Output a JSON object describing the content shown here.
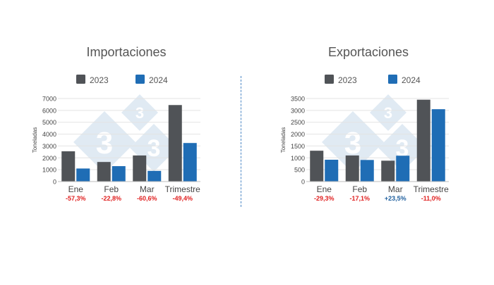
{
  "colors": {
    "s2023": "#505357",
    "s2024": "#1f6db5",
    "negative": "#e02020",
    "positive": "#1f5f9e",
    "grid": "#e3e3e3",
    "text": "#555555",
    "watermark": "#dde8f2"
  },
  "watermark_icon": "333-logo-watermark",
  "chart_data": [
    {
      "type": "bar",
      "title": "Importaciones",
      "ylabel": "Toneladas",
      "xlabel": "",
      "categories": [
        "Ene",
        "Feb",
        "Mar",
        "Trimestre"
      ],
      "changes": [
        "-57,3%",
        "-22,8%",
        "-60,6%",
        "-49,4%"
      ],
      "change_signs": [
        "negative",
        "negative",
        "negative",
        "negative"
      ],
      "ylim": [
        0,
        7000
      ],
      "yticks": [
        0,
        1000,
        2000,
        3000,
        4000,
        5000,
        6000,
        7000
      ],
      "grid": true,
      "legend_position": "top",
      "series": [
        {
          "name": "2023",
          "values": [
            2550,
            1650,
            2200,
            6450
          ]
        },
        {
          "name": "2024",
          "values": [
            1100,
            1300,
            900,
            3250
          ]
        }
      ]
    },
    {
      "type": "bar",
      "title": "Exportaciones",
      "ylabel": "Toneladas",
      "xlabel": "",
      "categories": [
        "Ene",
        "Feb",
        "Mar",
        "Trimestre"
      ],
      "changes": [
        "-29,3%",
        "-17,1%",
        "+23,5%",
        "-11,0%"
      ],
      "change_signs": [
        "negative",
        "negative",
        "positive",
        "negative"
      ],
      "ylim": [
        0,
        3500
      ],
      "yticks": [
        0,
        500,
        1000,
        1500,
        2000,
        2500,
        3000,
        3500
      ],
      "grid": true,
      "legend_position": "top",
      "series": [
        {
          "name": "2023",
          "values": [
            1300,
            1100,
            880,
            3450
          ]
        },
        {
          "name": "2024",
          "values": [
            920,
            910,
            1090,
            3050
          ]
        }
      ]
    }
  ]
}
